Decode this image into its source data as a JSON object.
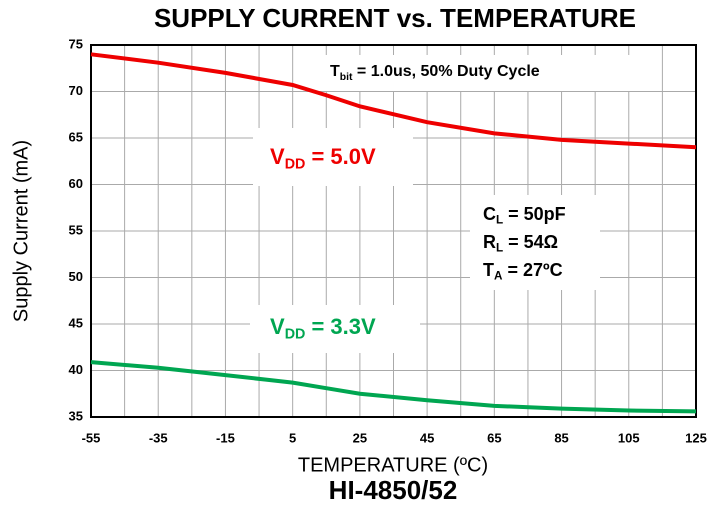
{
  "chart_data": {
    "type": "line",
    "title": "SUPPLY CURRENT vs. TEMPERATURE",
    "xlabel": "TEMPERATURE (ºC)",
    "ylabel": "Supply Current (mA)",
    "footer": "HI-4850/52",
    "x": [
      -55,
      -35,
      -15,
      5,
      15,
      25,
      45,
      65,
      85,
      105,
      125
    ],
    "series": [
      {
        "color": "#ee0000",
        "values": [
          74.0,
          73.1,
          72.0,
          70.7,
          69.6,
          68.4,
          66.7,
          65.5,
          64.8,
          64.4,
          64.0
        ]
      },
      {
        "color": "#00a651",
        "values": [
          40.9,
          40.3,
          39.5,
          38.7,
          38.1,
          37.5,
          36.8,
          36.2,
          35.9,
          35.7,
          35.6
        ]
      }
    ],
    "xlim": [
      -55,
      125
    ],
    "ylim": [
      35,
      75
    ],
    "xticks": [
      -55,
      -35,
      -15,
      5,
      25,
      45,
      65,
      85,
      105,
      125
    ],
    "x_minor_grid": [
      -45,
      -25,
      -5,
      15,
      35,
      55,
      75,
      95,
      115
    ],
    "yticks": [
      35,
      40,
      45,
      50,
      55,
      60,
      65,
      70,
      75
    ],
    "grid": true,
    "annotations": [
      {
        "main": "T",
        "sub": "bit",
        "rest": " = 1.0us, 50% Duty Cycle",
        "color": "#000000"
      },
      {
        "main": "V",
        "sub": "DD",
        "rest": " = 5.0V",
        "color": "#ee0000"
      },
      {
        "main": "C",
        "sub": "L",
        "rest": " = 50pF",
        "color": "#000000"
      },
      {
        "main": "R",
        "sub": "L",
        "rest": " = 54Ω",
        "color": "#000000"
      },
      {
        "main": "T",
        "sub": "A",
        "rest": " = 27ºC",
        "color": "#000000"
      },
      {
        "main": "V",
        "sub": "DD",
        "rest": " = 3.3V",
        "color": "#00a651"
      }
    ]
  }
}
